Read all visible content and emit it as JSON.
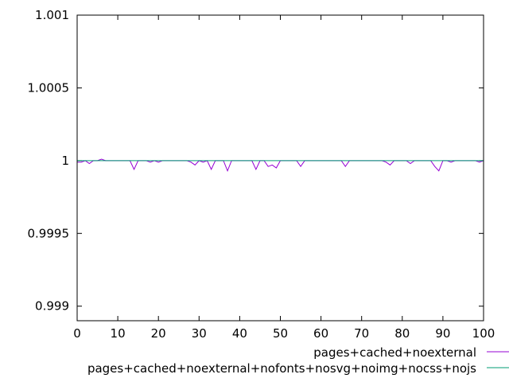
{
  "chart_data": {
    "type": "line",
    "title": "",
    "xlabel": "",
    "ylabel": "",
    "xlim": [
      0,
      100
    ],
    "ylim": [
      0.9989,
      1.001
    ],
    "x_ticks": [
      0,
      10,
      20,
      30,
      40,
      50,
      60,
      70,
      80,
      90,
      100
    ],
    "x_tick_labels": [
      "0",
      "10",
      "20",
      "30",
      "40",
      "50",
      "60",
      "70",
      "80",
      "90",
      "100"
    ],
    "y_ticks": [
      0.999,
      0.9995,
      1,
      1.0005,
      1.001
    ],
    "y_tick_labels": [
      "0.999",
      "0.9995",
      "1",
      "1.0005",
      "1.001"
    ],
    "grid": false,
    "legend_position": "bottom-right",
    "series": [
      {
        "name": "pages+cached+noexternal",
        "color": "#9400d3",
        "x": [
          0,
          1,
          2,
          3,
          4,
          5,
          6,
          7,
          8,
          9,
          10,
          11,
          12,
          13,
          14,
          15,
          16,
          17,
          18,
          19,
          20,
          21,
          22,
          23,
          24,
          25,
          26,
          27,
          28,
          29,
          30,
          31,
          32,
          33,
          34,
          35,
          36,
          37,
          38,
          39,
          40,
          41,
          42,
          43,
          44,
          45,
          46,
          47,
          48,
          49,
          50,
          51,
          52,
          53,
          54,
          55,
          56,
          57,
          58,
          59,
          60,
          61,
          62,
          63,
          64,
          65,
          66,
          67,
          68,
          69,
          70,
          71,
          72,
          73,
          74,
          75,
          76,
          77,
          78,
          79,
          80,
          81,
          82,
          83,
          84,
          85,
          86,
          87,
          88,
          89,
          90,
          91,
          92,
          93,
          94,
          95,
          96,
          97,
          98,
          99,
          100
        ],
        "y": [
          0.99999,
          0.99999,
          1.0,
          0.99998,
          1.0,
          1.0,
          1.00001,
          1.0,
          1.0,
          1.0,
          1.0,
          1.0,
          1.0,
          1.0,
          0.99994,
          1.0,
          1.0,
          1.0,
          0.99999,
          1.0,
          0.99999,
          1.0,
          1.0,
          1.0,
          1.0,
          1.0,
          1.0,
          1.0,
          0.99999,
          0.99997,
          1.0,
          0.99999,
          1.0,
          0.99994,
          1.0,
          1.0,
          1.0,
          0.99993,
          1.0,
          1.0,
          1.0,
          1.0,
          1.0,
          1.0,
          0.99994,
          1.0,
          1.0,
          0.99996,
          0.99997,
          0.99995,
          1.0,
          1.0,
          1.0,
          1.0,
          1.0,
          0.99996,
          1.0,
          1.0,
          1.0,
          1.0,
          1.0,
          1.0,
          1.0,
          1.0,
          1.0,
          1.0,
          0.99996,
          1.0,
          1.0,
          1.0,
          1.0,
          1.0,
          1.0,
          1.0,
          1.0,
          1.0,
          0.99999,
          0.99997,
          1.0,
          1.0,
          1.0,
          1.0,
          0.99998,
          1.0,
          1.0,
          1.0,
          1.0,
          1.0,
          0.99996,
          0.99993,
          1.0,
          1.0,
          0.99999,
          1.0,
          1.0,
          1.0,
          1.0,
          1.0,
          1.0,
          0.99999,
          1.0
        ]
      },
      {
        "name": "pages+cached+noexternal+nofonts+nosvg+noimg+nocss+nojs",
        "color": "#009e73",
        "x": [
          0,
          100
        ],
        "y": [
          1.0,
          1.0
        ]
      }
    ]
  }
}
